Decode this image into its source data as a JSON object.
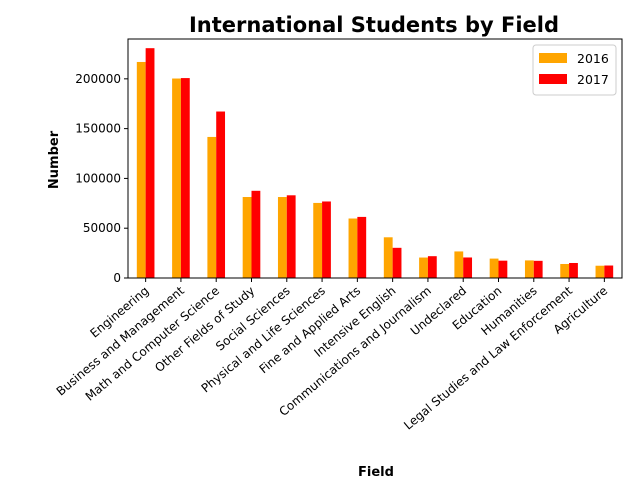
{
  "chart_data": {
    "type": "bar",
    "title": "International Students by Field",
    "xlabel": "Field",
    "ylabel": "Number",
    "ylim": [
      0,
      240000
    ],
    "yticks": [
      0,
      50000,
      100000,
      150000,
      200000
    ],
    "ytick_labels": [
      "0",
      "50000",
      "100000",
      "150000",
      "200000"
    ],
    "legend_position": "top-right",
    "categories": [
      "Engineering",
      "Business and Management",
      "Math and Computer Science",
      "Other Fields of Study",
      "Social Sciences",
      "Physical and Life Sciences",
      "Fine and Applied Arts",
      "Intensive English",
      "Communications and Journalism",
      "Undeclared",
      "Education",
      "Humanities",
      "Legal Studies and Law Enforcement",
      "Agriculture"
    ],
    "series": [
      {
        "name": "2016",
        "color": "#FFA500",
        "values": [
          216932,
          200312,
          141651,
          81318,
          81304,
          75385,
          59736,
          40877,
          20549,
          26675,
          19483,
          17664,
          14083,
          12318
        ]
      },
      {
        "name": "2017",
        "color": "#FF0000",
        "values": [
          230780,
          200754,
          167180,
          87554,
          83046,
          76838,
          61341,
          30309,
          21913,
          20601,
          17407,
          17240,
          15077,
          12536
        ]
      }
    ]
  }
}
